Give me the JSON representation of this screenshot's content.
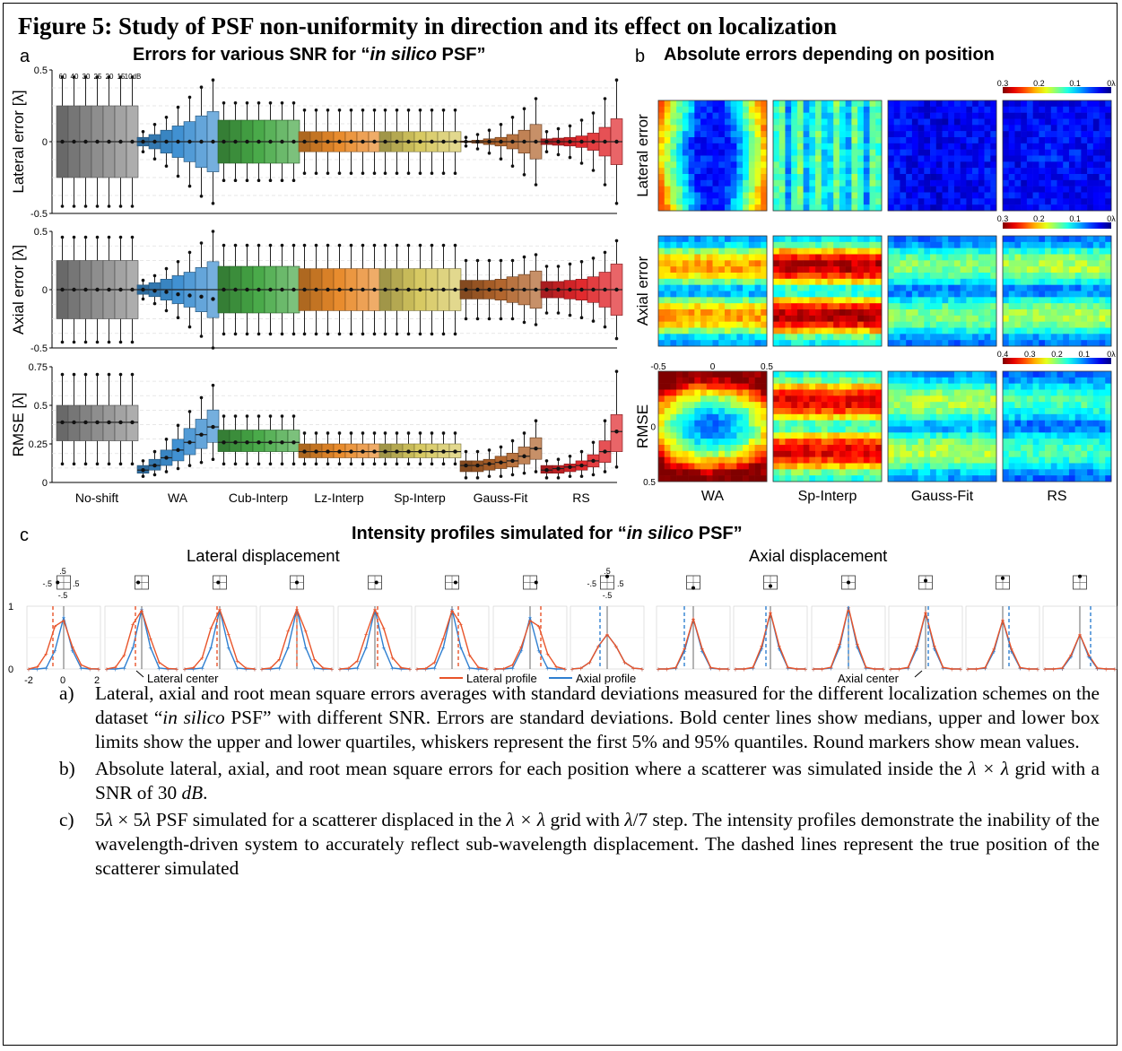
{
  "figure_title": "Figure 5: Study of PSF non-uniformity in direction and its effect on localization",
  "panel_a": {
    "label": "a",
    "title": "Errors for various SNR for “in silico PSF”",
    "snr_labels": [
      "60",
      "40",
      "30",
      "25",
      "20",
      "15",
      "10dB"
    ],
    "methods": [
      "No-shift",
      "WA",
      "Cub-Interp",
      "Lz-Interp",
      "Sp-Interp",
      "Gauss-Fit",
      "RS"
    ],
    "method_colors": [
      "#8c8c8c",
      "#3d8fd1",
      "#46a846",
      "#e88a2a",
      "#d6c860",
      "#b0632a",
      "#e0262a"
    ],
    "rows": [
      {
        "ylabel": "Lateral error [λ]",
        "ticks": [
          "0.5",
          "0",
          "-0.5"
        ]
      },
      {
        "ylabel": "Axial error [λ]",
        "ticks": [
          "0.5",
          "0",
          "-0.5"
        ]
      },
      {
        "ylabel": "RMSE [λ]",
        "ticks": [
          "0.75",
          "0.5",
          "0.25",
          "0"
        ]
      }
    ]
  },
  "panel_b": {
    "label": "b",
    "title": "Absolute errors depending on position",
    "row_labels": [
      "Lateral error",
      "Axial error",
      "RMSE"
    ],
    "col_labels": [
      "WA",
      "Sp-Interp",
      "Gauss-Fit",
      "RS"
    ],
    "colorbars": [
      [
        "0.3",
        "0.2",
        "0.1",
        "0λ"
      ],
      [
        "0.3",
        "0.2",
        "0.1",
        "0λ"
      ],
      [
        "0.4",
        "0.3",
        "0.2",
        "0.1",
        "0λ"
      ]
    ],
    "axis_ticks": {
      "top": [
        "-0.5",
        "0",
        "0.5"
      ],
      "left": [
        "0",
        "0.5"
      ]
    }
  },
  "panel_c": {
    "label": "c",
    "title": "Intensity profiles simulated for “in silico PSF”",
    "lateral_title": "Lateral displacement",
    "axial_title": "Axial displacement",
    "inset_ticks": [
      ".5",
      "-.5",
      ".5",
      "-.5"
    ],
    "y_ticks": [
      "1",
      "0"
    ],
    "x_ticks": [
      "-2",
      "0",
      "2"
    ],
    "lateral_center": "Lateral center",
    "axial_center": "Axial center",
    "legend": [
      {
        "label": "Lateral profile",
        "color": "#e8542a"
      },
      {
        "label": "Axial profile",
        "color": "#2f7fd0"
      }
    ]
  },
  "chart_data": [
    {
      "type": "box",
      "title": "Errors for various SNR for “in silico PSF”",
      "ylabel": "Lateral error [λ]",
      "ylim": [
        -0.5,
        0.5
      ],
      "categories": [
        "No-shift",
        "WA",
        "Cub-Interp",
        "Lz-Interp",
        "Sp-Interp",
        "Gauss-Fit",
        "RS"
      ],
      "snr": [
        "60",
        "40",
        "30",
        "25",
        "20",
        "15",
        "10dB"
      ],
      "series": [
        {
          "iqr": [
            0.25,
            0.25,
            0.25,
            0.25,
            0.25,
            0.25,
            0.25
          ],
          "whisker": [
            0.45,
            0.45,
            0.45,
            0.45,
            0.45,
            0.45,
            0.45
          ],
          "mean": [
            0,
            0,
            0,
            0,
            0,
            0,
            0
          ]
        },
        {
          "iqr": [
            0.03,
            0.05,
            0.08,
            0.11,
            0.14,
            0.18,
            0.21
          ],
          "whisker": [
            0.07,
            0.12,
            0.17,
            0.24,
            0.31,
            0.38,
            0.43
          ],
          "mean": [
            0,
            0,
            0,
            0,
            0,
            0,
            0
          ]
        },
        {
          "iqr": [
            0.15,
            0.15,
            0.15,
            0.15,
            0.15,
            0.15,
            0.15
          ],
          "whisker": [
            0.27,
            0.27,
            0.27,
            0.27,
            0.27,
            0.27,
            0.27
          ],
          "mean": [
            0,
            0,
            0,
            0,
            0,
            0,
            0
          ]
        },
        {
          "iqr": [
            0.07,
            0.07,
            0.07,
            0.07,
            0.07,
            0.07,
            0.07
          ],
          "whisker": [
            0.22,
            0.22,
            0.22,
            0.22,
            0.22,
            0.22,
            0.22
          ],
          "mean": [
            0,
            0,
            0,
            0,
            0,
            0,
            0
          ]
        },
        {
          "iqr": [
            0.07,
            0.07,
            0.07,
            0.07,
            0.07,
            0.07,
            0.07
          ],
          "whisker": [
            0.22,
            0.22,
            0.22,
            0.22,
            0.22,
            0.22,
            0.22
          ],
          "mean": [
            0,
            0,
            0,
            0,
            0,
            0,
            0
          ]
        },
        {
          "iqr": [
            0.005,
            0.01,
            0.02,
            0.03,
            0.05,
            0.08,
            0.12
          ],
          "whisker": [
            0.03,
            0.05,
            0.08,
            0.12,
            0.17,
            0.23,
            0.3
          ],
          "mean": [
            0,
            0,
            0,
            0,
            0,
            0,
            0
          ]
        },
        {
          "iqr": [
            0.02,
            0.025,
            0.03,
            0.04,
            0.06,
            0.1,
            0.16
          ],
          "whisker": [
            0.07,
            0.09,
            0.11,
            0.15,
            0.2,
            0.3,
            0.43
          ],
          "mean": [
            0,
            0,
            0,
            0,
            0,
            0,
            0
          ]
        }
      ]
    },
    {
      "type": "box",
      "ylabel": "Axial error [λ]",
      "ylim": [
        -0.5,
        0.5
      ],
      "categories": [
        "No-shift",
        "WA",
        "Cub-Interp",
        "Lz-Interp",
        "Sp-Interp",
        "Gauss-Fit",
        "RS"
      ],
      "series": [
        {
          "iqr": [
            0.25,
            0.25,
            0.25,
            0.25,
            0.25,
            0.25,
            0.25
          ],
          "whisker": [
            0.45,
            0.45,
            0.45,
            0.45,
            0.45,
            0.45,
            0.45
          ],
          "mean": [
            0,
            0,
            0,
            0,
            0,
            0,
            0
          ]
        },
        {
          "iqr": [
            0.04,
            0.06,
            0.09,
            0.12,
            0.15,
            0.19,
            0.24
          ],
          "whisker": [
            0.08,
            0.12,
            0.18,
            0.24,
            0.32,
            0.4,
            0.5
          ],
          "mean": [
            0,
            -0.01,
            -0.02,
            -0.04,
            -0.05,
            -0.06,
            -0.08
          ]
        },
        {
          "iqr": [
            0.2,
            0.2,
            0.2,
            0.2,
            0.2,
            0.2,
            0.2
          ],
          "whisker": [
            0.38,
            0.38,
            0.38,
            0.38,
            0.38,
            0.38,
            0.38
          ],
          "mean": [
            0,
            0,
            0,
            0,
            0,
            0,
            0
          ]
        },
        {
          "iqr": [
            0.18,
            0.18,
            0.18,
            0.18,
            0.18,
            0.18,
            0.18
          ],
          "whisker": [
            0.38,
            0.38,
            0.38,
            0.38,
            0.38,
            0.38,
            0.38
          ],
          "mean": [
            0,
            0,
            0,
            0,
            0,
            0,
            0
          ]
        },
        {
          "iqr": [
            0.18,
            0.18,
            0.18,
            0.18,
            0.18,
            0.18,
            0.18
          ],
          "whisker": [
            0.38,
            0.38,
            0.38,
            0.38,
            0.38,
            0.38,
            0.38
          ],
          "mean": [
            0,
            0,
            0,
            0,
            0,
            0,
            0
          ]
        },
        {
          "iqr": [
            0.08,
            0.08,
            0.08,
            0.09,
            0.11,
            0.13,
            0.16
          ],
          "whisker": [
            0.25,
            0.25,
            0.25,
            0.25,
            0.25,
            0.28,
            0.3
          ],
          "mean": [
            0,
            0,
            0,
            0,
            0,
            0,
            0
          ]
        },
        {
          "iqr": [
            0.07,
            0.07,
            0.08,
            0.09,
            0.11,
            0.15,
            0.22
          ],
          "whisker": [
            0.2,
            0.2,
            0.22,
            0.24,
            0.27,
            0.32,
            0.42
          ],
          "mean": [
            0,
            0,
            0,
            0,
            0,
            0,
            0
          ]
        }
      ]
    },
    {
      "type": "box",
      "ylabel": "RMSE [λ]",
      "ylim": [
        0,
        0.75
      ],
      "categories": [
        "No-shift",
        "WA",
        "Cub-Interp",
        "Lz-Interp",
        "Sp-Interp",
        "Gauss-Fit",
        "RS"
      ],
      "series": [
        {
          "median": [
            0.39,
            0.39,
            0.39,
            0.39,
            0.39,
            0.39,
            0.39
          ],
          "q1": [
            0.27,
            0.27,
            0.27,
            0.27,
            0.27,
            0.27,
            0.27
          ],
          "q3": [
            0.5,
            0.5,
            0.5,
            0.5,
            0.5,
            0.5,
            0.5
          ],
          "wlo": [
            0.12,
            0.12,
            0.12,
            0.12,
            0.12,
            0.12,
            0.12
          ],
          "whi": [
            0.7,
            0.7,
            0.7,
            0.7,
            0.7,
            0.7,
            0.7
          ]
        },
        {
          "median": [
            0.08,
            0.11,
            0.16,
            0.21,
            0.26,
            0.31,
            0.36
          ],
          "q1": [
            0.06,
            0.08,
            0.11,
            0.14,
            0.18,
            0.22,
            0.26
          ],
          "q3": [
            0.11,
            0.15,
            0.21,
            0.28,
            0.35,
            0.41,
            0.47
          ],
          "wlo": [
            0.04,
            0.05,
            0.07,
            0.09,
            0.11,
            0.13,
            0.15
          ],
          "whi": [
            0.14,
            0.2,
            0.28,
            0.37,
            0.46,
            0.55,
            0.63
          ]
        },
        {
          "median": [
            0.26,
            0.26,
            0.26,
            0.26,
            0.26,
            0.26,
            0.26
          ],
          "q1": [
            0.2,
            0.2,
            0.2,
            0.2,
            0.2,
            0.2,
            0.2
          ],
          "q3": [
            0.34,
            0.34,
            0.34,
            0.34,
            0.34,
            0.34,
            0.34
          ],
          "wlo": [
            0.12,
            0.12,
            0.12,
            0.12,
            0.12,
            0.12,
            0.12
          ],
          "whi": [
            0.43,
            0.43,
            0.43,
            0.43,
            0.43,
            0.43,
            0.43
          ]
        },
        {
          "median": [
            0.2,
            0.2,
            0.2,
            0.2,
            0.2,
            0.2,
            0.2
          ],
          "q1": [
            0.16,
            0.16,
            0.16,
            0.16,
            0.16,
            0.16,
            0.16
          ],
          "q3": [
            0.25,
            0.25,
            0.25,
            0.25,
            0.25,
            0.25,
            0.25
          ],
          "wlo": [
            0.12,
            0.12,
            0.12,
            0.12,
            0.12,
            0.12,
            0.12
          ],
          "whi": [
            0.32,
            0.32,
            0.32,
            0.32,
            0.32,
            0.32,
            0.32
          ]
        },
        {
          "median": [
            0.2,
            0.2,
            0.2,
            0.2,
            0.2,
            0.2,
            0.2
          ],
          "q1": [
            0.16,
            0.16,
            0.16,
            0.16,
            0.16,
            0.16,
            0.16
          ],
          "q3": [
            0.25,
            0.25,
            0.25,
            0.25,
            0.25,
            0.25,
            0.25
          ],
          "wlo": [
            0.12,
            0.12,
            0.12,
            0.12,
            0.12,
            0.12,
            0.12
          ],
          "whi": [
            0.32,
            0.32,
            0.32,
            0.32,
            0.32,
            0.32,
            0.32
          ]
        },
        {
          "median": [
            0.11,
            0.11,
            0.12,
            0.13,
            0.14,
            0.17,
            0.22
          ],
          "q1": [
            0.07,
            0.07,
            0.08,
            0.09,
            0.1,
            0.12,
            0.15
          ],
          "q3": [
            0.14,
            0.14,
            0.15,
            0.17,
            0.19,
            0.23,
            0.29
          ],
          "wlo": [
            0.03,
            0.03,
            0.04,
            0.04,
            0.05,
            0.06,
            0.07
          ],
          "whi": [
            0.2,
            0.2,
            0.21,
            0.23,
            0.27,
            0.32,
            0.4
          ]
        },
        {
          "median": [
            0.08,
            0.09,
            0.1,
            0.11,
            0.14,
            0.2,
            0.33
          ],
          "q1": [
            0.06,
            0.06,
            0.07,
            0.08,
            0.1,
            0.13,
            0.2
          ],
          "q3": [
            0.11,
            0.11,
            0.12,
            0.14,
            0.18,
            0.27,
            0.44
          ],
          "wlo": [
            0.03,
            0.03,
            0.04,
            0.04,
            0.05,
            0.07,
            0.1
          ],
          "whi": [
            0.14,
            0.15,
            0.17,
            0.2,
            0.26,
            0.4,
            0.72
          ]
        }
      ]
    }
  ],
  "captions": [
    {
      "label": "a)",
      "segments": [
        {
          "t": "Lateral, axial and root mean square errors averages with standard deviations measured for the different localization schemes on the dataset “"
        },
        {
          "t": "in silico",
          "i": true
        },
        {
          "t": " PSF” with different SNR. Errors are standard deviations. Bold center lines show medians, upper and lower box limits show the upper and lower quartiles, whiskers represent the first 5% and 95% quantiles. Round markers show mean values."
        }
      ]
    },
    {
      "label": "b)",
      "segments": [
        {
          "t": "Absolute lateral, axial, and root mean square errors for each position where a scatterer was simulated inside the "
        },
        {
          "t": "λ × λ",
          "i": true
        },
        {
          "t": " grid with a SNR of 30 "
        },
        {
          "t": "dB",
          "i": true
        },
        {
          "t": "."
        }
      ]
    },
    {
      "label": "c)",
      "segments": [
        {
          "t": "5"
        },
        {
          "t": "λ",
          "i": true
        },
        {
          "t": " × 5"
        },
        {
          "t": "λ",
          "i": true
        },
        {
          "t": " PSF simulated for a scatterer displaced in the "
        },
        {
          "t": "λ × λ",
          "i": true
        },
        {
          "t": " grid with "
        },
        {
          "t": "λ",
          "i": true
        },
        {
          "t": "/7 step. The intensity profiles demonstrate the inability of the wavelength-driven system to accurately reflect sub-wavelength displacement. The dashed lines represent the true position of the scatterer simulated"
        }
      ]
    }
  ]
}
